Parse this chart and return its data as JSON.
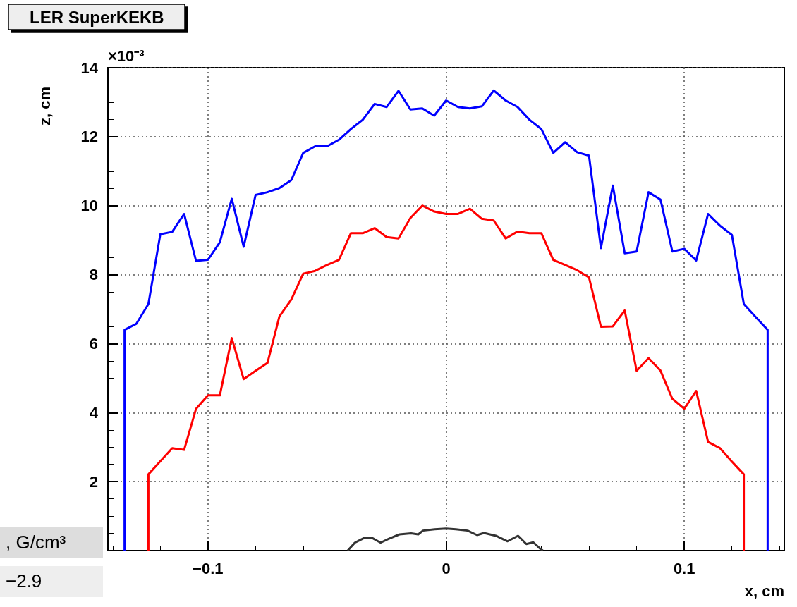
{
  "chart_data": {
    "type": "line",
    "title": "LER SuperKEKB",
    "xlabel": "x, cm",
    "ylabel": "z, cm",
    "xlim": [
      -0.142,
      0.142
    ],
    "xticks": [
      -0.1,
      0,
      0.1
    ],
    "ylim": [
      0,
      14
    ],
    "yticks": [
      2,
      4,
      6,
      8,
      10,
      12,
      14
    ],
    "grid": true,
    "annotations": [
      "×10⁻³",
      ", G/cm³",
      "−2.9"
    ],
    "series": [
      {
        "color": "#0000ff",
        "x": [
          -0.135,
          -0.135,
          -0.13,
          -0.125,
          -0.12,
          -0.115,
          -0.11,
          -0.105,
          -0.1,
          -0.095,
          -0.09,
          -0.085,
          -0.08,
          -0.075,
          -0.07,
          -0.065,
          -0.06,
          -0.055,
          -0.05,
          -0.045,
          -0.04,
          -0.035,
          -0.03,
          -0.025,
          -0.02,
          -0.015,
          -0.01,
          -0.005,
          0,
          0.005,
          0.01,
          0.015,
          0.02,
          0.025,
          0.03,
          0.035,
          0.04,
          0.045,
          0.05,
          0.055,
          0.06,
          0.065,
          0.07,
          0.075,
          0.08,
          0.085,
          0.09,
          0.095,
          0.1,
          0.105,
          0.11,
          0.115,
          0.12,
          0.125,
          0.13,
          0.135,
          0.135
        ],
        "values": [
          0,
          6.4,
          6.58,
          7.15,
          9.17,
          9.24,
          9.76,
          8.4,
          8.43,
          8.94,
          10.2,
          8.81,
          10.31,
          10.39,
          10.51,
          10.74,
          11.53,
          11.72,
          11.72,
          11.91,
          12.22,
          12.49,
          12.95,
          12.86,
          13.33,
          12.79,
          12.82,
          12.61,
          13.05,
          12.86,
          12.82,
          12.88,
          13.34,
          13.05,
          12.86,
          12.49,
          12.22,
          11.53,
          11.84,
          11.55,
          11.45,
          8.77,
          10.58,
          8.62,
          8.67,
          10.39,
          10.18,
          8.67,
          8.75,
          8.41,
          9.76,
          9.42,
          9.15,
          7.15,
          6.77,
          6.4,
          0
        ]
      },
      {
        "color": "#ff0000",
        "x": [
          -0.125,
          -0.125,
          -0.12,
          -0.115,
          -0.11,
          -0.105,
          -0.1,
          -0.095,
          -0.09,
          -0.085,
          -0.08,
          -0.075,
          -0.07,
          -0.065,
          -0.06,
          -0.055,
          -0.05,
          -0.045,
          -0.04,
          -0.035,
          -0.03,
          -0.025,
          -0.02,
          -0.015,
          -0.01,
          -0.005,
          0,
          0.005,
          0.01,
          0.015,
          0.02,
          0.025,
          0.03,
          0.035,
          0.04,
          0.045,
          0.05,
          0.055,
          0.06,
          0.065,
          0.07,
          0.075,
          0.08,
          0.085,
          0.09,
          0.095,
          0.1,
          0.105,
          0.11,
          0.115,
          0.12,
          0.125,
          0.125
        ],
        "values": [
          0,
          2.21,
          2.59,
          2.97,
          2.92,
          4.11,
          4.5,
          4.5,
          6.16,
          4.97,
          5.21,
          5.44,
          6.79,
          7.28,
          8.03,
          8.11,
          8.28,
          8.43,
          9.2,
          9.2,
          9.35,
          9.09,
          9.05,
          9.64,
          10.0,
          9.83,
          9.76,
          9.76,
          9.91,
          9.62,
          9.57,
          9.05,
          9.25,
          9.2,
          9.2,
          8.43,
          8.28,
          8.13,
          7.92,
          6.49,
          6.5,
          6.96,
          5.21,
          5.58,
          5.22,
          4.4,
          4.11,
          4.63,
          3.15,
          2.97,
          2.58,
          2.21,
          0
        ]
      },
      {
        "color": "#333333",
        "x": [
          -0.0413,
          -0.0383,
          -0.0343,
          -0.0314,
          -0.0275,
          -0.0245,
          -0.0196,
          -0.0147,
          -0.0117,
          -0.0097,
          -0.0048,
          0,
          0.0041,
          0.009,
          0.013,
          0.0159,
          0.0209,
          0.0258,
          0.0302,
          0.0337,
          0.0366,
          0.0396,
          0.0406
        ],
        "values": [
          0,
          0.23,
          0.37,
          0.38,
          0.23,
          0.33,
          0.47,
          0.5,
          0.47,
          0.58,
          0.62,
          0.64,
          0.62,
          0.58,
          0.45,
          0.51,
          0.43,
          0.27,
          0.43,
          0.19,
          0.24,
          0.05,
          0
        ]
      }
    ]
  }
}
